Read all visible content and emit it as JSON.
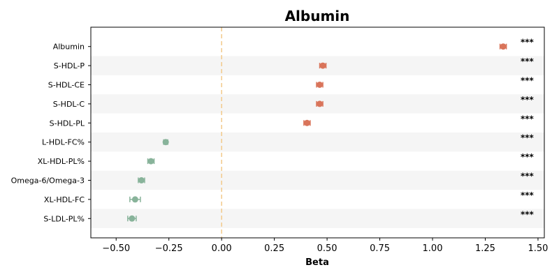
{
  "chart_data": {
    "type": "scatter",
    "title": "Albumin",
    "xlabel": "Beta",
    "ylabel": "",
    "xlim": [
      -0.62,
      1.53
    ],
    "xticks": [
      "-0.50",
      "-0.25",
      "0.00",
      "0.25",
      "0.50",
      "0.75",
      "1.00",
      "1.25",
      "1.50"
    ],
    "xtick_values": [
      -0.5,
      -0.25,
      0,
      0.25,
      0.5,
      0.75,
      1.0,
      1.25,
      1.5
    ],
    "reference_line": 0,
    "grid": false,
    "row_shading": "alternating",
    "categories": [
      "Albumin",
      "S-HDL-P",
      "S-HDL-CE",
      "S-HDL-C",
      "S-HDL-PL",
      "L-HDL-FC%",
      "XL-HDL-PL%",
      "Omega-6/Omega-3",
      "XL-HDL-FC",
      "S-LDL-PL%"
    ],
    "values": [
      1.335,
      0.48,
      0.465,
      0.465,
      0.405,
      -0.265,
      -0.335,
      -0.38,
      -0.41,
      -0.425
    ],
    "ci_low": [
      1.32,
      0.465,
      0.45,
      0.45,
      0.39,
      -0.275,
      -0.35,
      -0.395,
      -0.435,
      -0.445
    ],
    "ci_high": [
      1.35,
      0.495,
      0.48,
      0.48,
      0.42,
      -0.255,
      -0.32,
      -0.365,
      -0.385,
      -0.405
    ],
    "significance": [
      "***",
      "***",
      "***",
      "***",
      "***",
      "***",
      "***",
      "***",
      "***",
      "***"
    ],
    "colors": {
      "positive": "#d9745a",
      "negative": "#88b39a",
      "reference": "#f2c98a",
      "shade": "#f5f5f5"
    }
  }
}
